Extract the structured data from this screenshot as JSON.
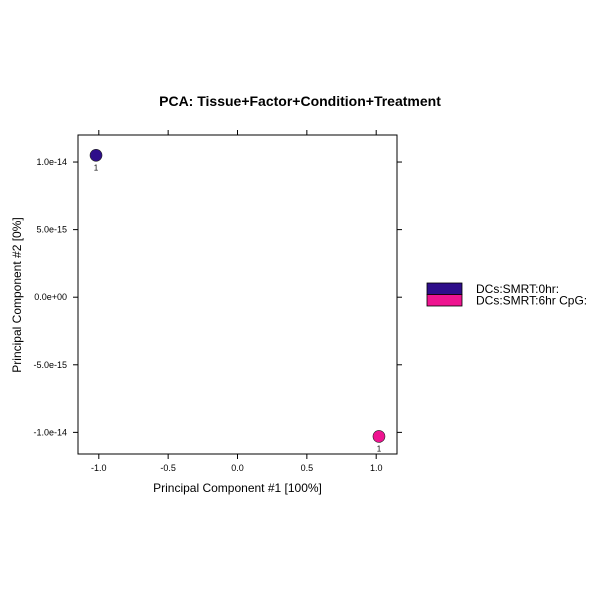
{
  "chart_data": {
    "type": "scatter",
    "title": "PCA: Tissue+Factor+Condition+Treatment",
    "xlabel": "Principal Component #1 [100%]",
    "ylabel": "Principal Component #2 [0%]",
    "xlim": [
      -1.15,
      1.15
    ],
    "ylim": [
      -1.16e-14,
      1.2e-14
    ],
    "x_ticks": [
      -1.0,
      -0.5,
      0.0,
      0.5,
      1.0
    ],
    "x_tick_labels": [
      "-1.0",
      "-0.5",
      "0.0",
      "0.5",
      "1.0"
    ],
    "y_ticks": [
      1e-14,
      5e-15,
      0,
      -5e-15,
      -1e-14
    ],
    "y_tick_labels": [
      "1.0e-14",
      "5.0e-15",
      "0.0e+00",
      "-5.0e-15",
      "-1.0e-14"
    ],
    "grid": false,
    "legend_position": "right",
    "series": [
      {
        "name": "DCs:SMRT:0hr:",
        "color": "#2e0e8a",
        "points": [
          {
            "x": -1.02,
            "y": 1.05e-14,
            "label": "1"
          }
        ]
      },
      {
        "name": "DCs:SMRT:6hr CpG:",
        "color": "#ee1490",
        "points": [
          {
            "x": 1.02,
            "y": -1.03e-14,
            "label": "1"
          }
        ]
      }
    ]
  }
}
